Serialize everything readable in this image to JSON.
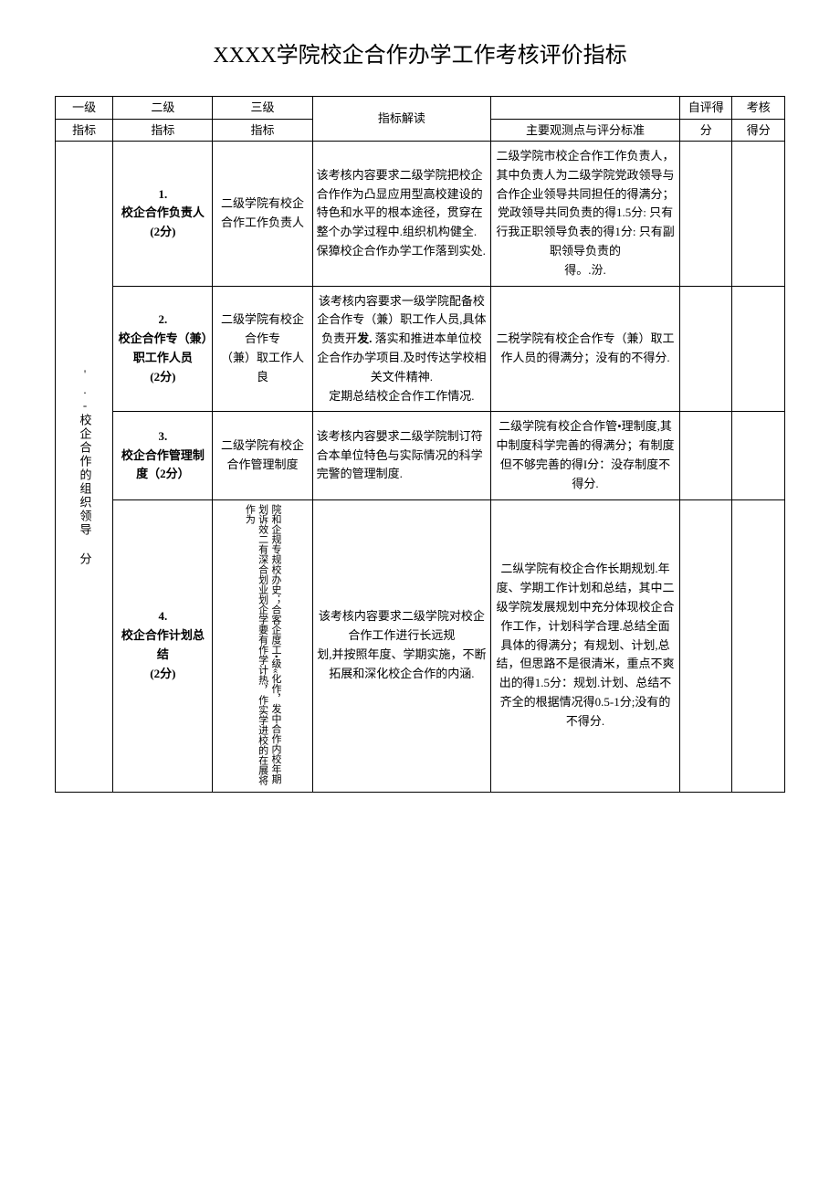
{
  "title": "XXXX学院校企合作办学工作考核评价指标",
  "headers": {
    "col1_top": "一级",
    "col1_bot": "指标",
    "col2_top": "二级",
    "col2_bot": "指标",
    "col3_top": "三级",
    "col3_bot": "指标",
    "col4": "指标解读",
    "col5": "主要观测点与评分标准",
    "col6_top": "自评得",
    "col6_bot": "分",
    "col7_top": "考核",
    "col7_bot": "得分"
  },
  "category": "'.-校企合作的组织领导 分",
  "rows": [
    {
      "l2": "1.\n校企合作负责人\n(2分)",
      "l3": "二级学院有校企合作工作负责人",
      "interp": "该考核内容要求二级学院把校企合作作为凸显应用型高校建设的特色和水平的根本途径，贯穿在整个办学过程中.组织机构健全.保獐校企合作办学工作落到实处.",
      "standard": "二级学院市校企合作工作负责人，其中负责人为二级学院党政领导与合作企业领导共同担任的得满分；党政领导共同负责的得1.5分: 只有行我正职领导负表的得1分: 只有副职领导负责的\n得。.汾."
    },
    {
      "l2": "2.\n校企合作专（兼）职工作人员\n(2分)",
      "l3": "二级学院有校企合作专\n（兼）取工作人良",
      "interp": "该考核内容要求一级学院配备校企合作专（兼）职工作人员,具体负责开",
      "interp_bold": "发.",
      "interp_after": " 落实和推进本单位校企合作办学项目.及时传达学校相关文件精神.\n定期总结校企合作工作情况.",
      "standard": "二税学院有校企合作专（兼）取工作人员的得满分；没有的不得分."
    },
    {
      "l2": "3.\n校企合作管理制度（2分）",
      "l3": "二级学院有校企合作管理制度",
      "interp": "该考核内容嬰求二级学院制订符合本单位特色与实际情况的科学完警的管理制度.",
      "standard": "二级学院有校企合作管•理制度,其中制度科学完善的得满分；有制度但不够完善的得I分：没存制度不得分."
    },
    {
      "l2": "4.\n校企合作计划总结\n(2分)",
      "l3": "院和企规专规校办史；合客企度工•级«化作，发中合作内校年期划诉效二有深合划业划企学要有作学计热，作实学进校的在展将作为",
      "interp": "该考核内容要求二级学院对校企合作工作进行长远规\n划,并按照年度、学期实施，不断拓展和深化校企合作的内涵.",
      "standard": "二纵学院有校企合作长期规划.年度、学期工作计划和总结，其中二级学院发展规划中充分体现校企合作工作，计划科学合理.总结全面具体的得满分；有规划、计划,总结，但思路不是很清米，重点不爽出的得1.5分：规划.计划、总结不齐全的根据情况得0.5-1分;没有的不得分."
    }
  ]
}
